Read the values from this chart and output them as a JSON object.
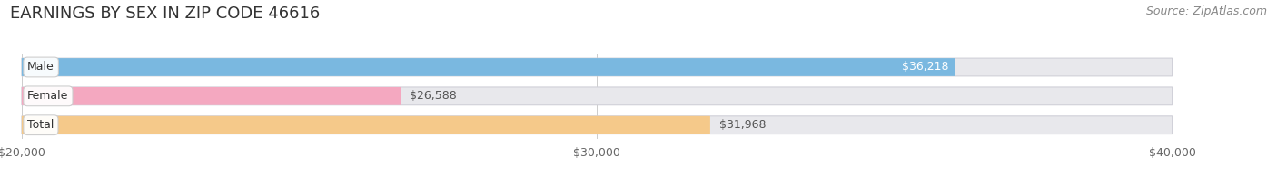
{
  "title": "EARNINGS BY SEX IN ZIP CODE 46616",
  "source": "Source: ZipAtlas.com",
  "categories": [
    "Male",
    "Female",
    "Total"
  ],
  "values": [
    36218,
    26588,
    31968
  ],
  "bar_colors": [
    "#7ab8e0",
    "#f4a8c0",
    "#f5c98a"
  ],
  "bar_bg_color": "#e8e8ec",
  "value_label_inside": [
    true,
    false,
    false
  ],
  "value_label_colors_inside": [
    "#ffffff",
    "#555555",
    "#555555"
  ],
  "xmin": 20000,
  "xmax": 40000,
  "xticks": [
    20000,
    30000,
    40000
  ],
  "xtick_labels": [
    "$20,000",
    "$30,000",
    "$40,000"
  ],
  "title_fontsize": 13,
  "source_fontsize": 9,
  "bar_label_fontsize": 9,
  "tick_fontsize": 9,
  "category_fontsize": 9,
  "background_color": "#ffffff"
}
